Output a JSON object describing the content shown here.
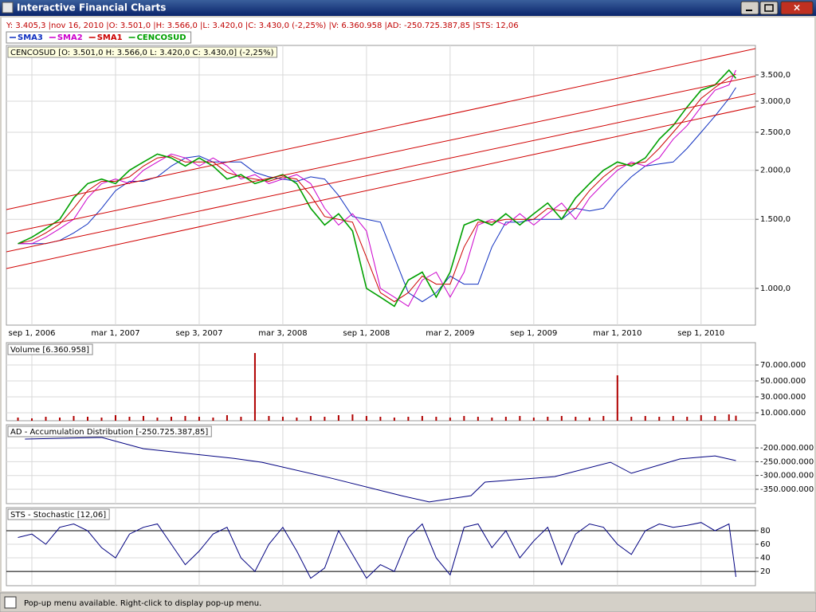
{
  "window": {
    "title": "Interactive Financial Charts"
  },
  "info_bar": "Y: 3.405,3 |nov 16, 2010 |O: 3.501,0 |H: 3.566,0 |L: 3.420,0 |C: 3.430,0 (-2,25%) |V: 6.360.958 |AD: -250.725.387,85 |STS: 12,06",
  "status_bar": "Pop-up menu available. Right-click to display pop-up menu.",
  "chart_data": [
    {
      "type": "line",
      "title": "CENCOSUD [O: 3.501,0  H: 3.566,0  L: 3.420,0  C: 3.430,0] (-2,25%)",
      "log_scale": true,
      "grid": true,
      "xlim": [
        -1.83,
        51.9
      ],
      "xticks": [
        {
          "value": 0,
          "label": "sep 1, 2006"
        },
        {
          "value": 6,
          "label": "mar 1, 2007"
        },
        {
          "value": 12,
          "label": "sep 3, 2007"
        },
        {
          "value": 18,
          "label": "mar 3, 2008"
        },
        {
          "value": 24,
          "label": "sep 1, 2008"
        },
        {
          "value": 30,
          "label": "mar 2, 2009"
        },
        {
          "value": 36,
          "label": "sep 1, 2009"
        },
        {
          "value": 42,
          "label": "mar 1, 2010"
        },
        {
          "value": 48,
          "label": "sep 1, 2010"
        }
      ],
      "ylim": [
        806,
        4162
      ],
      "yticks": [
        {
          "value": 1000,
          "label": "1.000,0"
        },
        {
          "value": 1500,
          "label": "1.500,0"
        },
        {
          "value": 2000,
          "label": "2.000,0"
        },
        {
          "value": 2500,
          "label": "2.500,0"
        },
        {
          "value": 3000,
          "label": "3.000,0"
        },
        {
          "value": 3500,
          "label": "3.500,0"
        }
      ],
      "x": [
        -1,
        0,
        1,
        2,
        3,
        4,
        5,
        6,
        7,
        8,
        9,
        10,
        11,
        12,
        13,
        14,
        15,
        16,
        17,
        18,
        19,
        20,
        21,
        22,
        23,
        24,
        25,
        26,
        27,
        28,
        29,
        30,
        31,
        32,
        33,
        34,
        35,
        36,
        37,
        38,
        39,
        40,
        41,
        42,
        43,
        44,
        45,
        46,
        47,
        48,
        49,
        50,
        50.5
      ],
      "series": [
        {
          "name": "SMA3",
          "color": "#1030c0",
          "values": [
            1300,
            1300,
            1300,
            1325,
            1385,
            1460,
            1600,
            1775,
            1875,
            1875,
            1925,
            2050,
            2150,
            2175,
            2100,
            2100,
            2100,
            1975,
            1925,
            1900,
            1875,
            1925,
            1900,
            1725,
            1525,
            1500,
            1475,
            1200,
            975,
            925,
            975,
            1075,
            1025,
            1025,
            1275,
            1475,
            1475,
            1500,
            1500,
            1500,
            1600,
            1575,
            1600,
            1775,
            1925,
            2050,
            2075,
            2100,
            2275,
            2500,
            2750,
            3050,
            3250
          ]
        },
        {
          "name": "SMA2",
          "color": "#cc00cc",
          "values": [
            1300,
            1300,
            1350,
            1420,
            1500,
            1700,
            1850,
            1900,
            1850,
            2000,
            2100,
            2200,
            2150,
            2050,
            2150,
            2050,
            1900,
            1950,
            1850,
            1900,
            1950,
            1850,
            1600,
            1450,
            1550,
            1400,
            1000,
            950,
            900,
            1050,
            1100,
            950,
            1100,
            1450,
            1500,
            1450,
            1550,
            1450,
            1550,
            1650,
            1500,
            1700,
            1850,
            2000,
            2100,
            2050,
            2150,
            2400,
            2600,
            2900,
            3200,
            3300,
            3600
          ]
        },
        {
          "name": "SMA1",
          "color": "#cc0000",
          "values": [
            1300,
            1325,
            1385,
            1460,
            1600,
            1775,
            1875,
            1875,
            1925,
            2050,
            2150,
            2175,
            2100,
            2100,
            2100,
            1975,
            1925,
            1900,
            1875,
            1925,
            1900,
            1725,
            1525,
            1500,
            1475,
            1200,
            975,
            925,
            975,
            1075,
            1025,
            1025,
            1275,
            1475,
            1475,
            1500,
            1500,
            1500,
            1600,
            1575,
            1600,
            1775,
            1925,
            2050,
            2075,
            2100,
            2275,
            2500,
            2750,
            3050,
            3250,
            3450,
            3515
          ]
        },
        {
          "name": "CENCOSUD",
          "color": "#00a000",
          "values": [
            1300,
            1350,
            1420,
            1500,
            1700,
            1850,
            1900,
            1850,
            2000,
            2100,
            2200,
            2150,
            2050,
            2150,
            2050,
            1900,
            1950,
            1850,
            1900,
            1950,
            1850,
            1600,
            1450,
            1550,
            1400,
            1000,
            950,
            900,
            1050,
            1100,
            950,
            1100,
            1450,
            1500,
            1450,
            1550,
            1450,
            1550,
            1650,
            1500,
            1700,
            1850,
            2000,
            2100,
            2050,
            2150,
            2400,
            2600,
            2900,
            3200,
            3300,
            3600,
            3430
          ]
        }
      ]
    },
    {
      "type": "bar",
      "title": "Volume [6.360.958]",
      "grid": true,
      "color": "#b00000",
      "xlim": [
        -1.83,
        51.9
      ],
      "ylim": [
        0,
        98000000
      ],
      "yticks": [
        {
          "value": 10000000,
          "label": "10.000.000"
        },
        {
          "value": 30000000,
          "label": "30.000.000"
        },
        {
          "value": 50000000,
          "label": "50.000.000"
        },
        {
          "value": 70000000,
          "label": "70.000.000"
        }
      ],
      "x": [
        -1,
        0,
        1,
        2,
        3,
        4,
        5,
        6,
        7,
        8,
        9,
        10,
        11,
        12,
        13,
        14,
        15,
        16,
        17,
        18,
        19,
        20,
        21,
        22,
        23,
        24,
        25,
        26,
        27,
        28,
        29,
        30,
        31,
        32,
        33,
        34,
        35,
        36,
        37,
        38,
        39,
        40,
        41,
        42,
        43,
        44,
        45,
        46,
        47,
        48,
        49,
        50,
        50.5
      ],
      "values": [
        4000000,
        3000000,
        5000000,
        4000000,
        6000000,
        5000000,
        4000000,
        7000000,
        5000000,
        6000000,
        4000000,
        5000000,
        6000000,
        5000000,
        4000000,
        7000000,
        5000000,
        85000000,
        6000000,
        5000000,
        4000000,
        6000000,
        5000000,
        7000000,
        8000000,
        6000000,
        5000000,
        4000000,
        5000000,
        6000000,
        5000000,
        4000000,
        6000000,
        5000000,
        4000000,
        5000000,
        6000000,
        4000000,
        5000000,
        6000000,
        5000000,
        4000000,
        6000000,
        57000000,
        5000000,
        6000000,
        5000000,
        6000000,
        5000000,
        7000000,
        6000000,
        8000000,
        6360958
      ]
    },
    {
      "type": "line",
      "title": "AD - Accumulation Distribution [-250.725.387,85]",
      "grid": true,
      "color": "#000080",
      "xlim": [
        -1.83,
        51.9
      ],
      "ylim": [
        -402000000,
        -116000000
      ],
      "yticks": [
        {
          "value": -200000000,
          "label": "-200.000.000"
        },
        {
          "value": -250000000,
          "label": "-250.000.000"
        },
        {
          "value": -300000000,
          "label": "-300.000.000"
        },
        {
          "value": -350000000,
          "label": "-350.000.000"
        }
      ],
      "x": [
        -0.5,
        5,
        8,
        14.5,
        16.5,
        21.5,
        26.5,
        28.5,
        31.5,
        32.5,
        37.5,
        41.5,
        43,
        46.5,
        49,
        50.5
      ],
      "values": [
        -168000000,
        -162000000,
        -203000000,
        -238000000,
        -252000000,
        -310000000,
        -373000000,
        -396000000,
        -373000000,
        -324000000,
        -304000000,
        -252000000,
        -292000000,
        -240000000,
        -229000000,
        -246000000
      ]
    },
    {
      "type": "line",
      "title": "STS - Stochastic [12,06]",
      "grid": true,
      "color": "#000080",
      "xlim": [
        -1.83,
        51.9
      ],
      "ylim": [
        -1,
        114
      ],
      "yticks": [
        20,
        40,
        60,
        80
      ],
      "hlines": [
        80,
        20
      ],
      "x": [
        -1,
        0,
        1,
        2,
        3,
        4,
        5,
        6,
        7,
        8,
        9,
        10,
        11,
        12,
        13,
        14,
        15,
        16,
        17,
        18,
        19,
        20,
        21,
        22,
        23,
        24,
        25,
        26,
        27,
        28,
        29,
        30,
        31,
        32,
        33,
        34,
        35,
        36,
        37,
        38,
        39,
        40,
        41,
        42,
        43,
        44,
        45,
        46,
        47,
        48,
        49,
        50,
        50.5
      ],
      "values": [
        70,
        75,
        60,
        85,
        90,
        80,
        55,
        40,
        75,
        85,
        90,
        60,
        30,
        50,
        75,
        85,
        40,
        20,
        60,
        85,
        50,
        10,
        25,
        80,
        45,
        10,
        30,
        20,
        70,
        90,
        40,
        15,
        85,
        90,
        55,
        80,
        40,
        65,
        85,
        30,
        75,
        90,
        85,
        60,
        45,
        80,
        90,
        85,
        88,
        92,
        80,
        90,
        12.06
      ]
    }
  ]
}
